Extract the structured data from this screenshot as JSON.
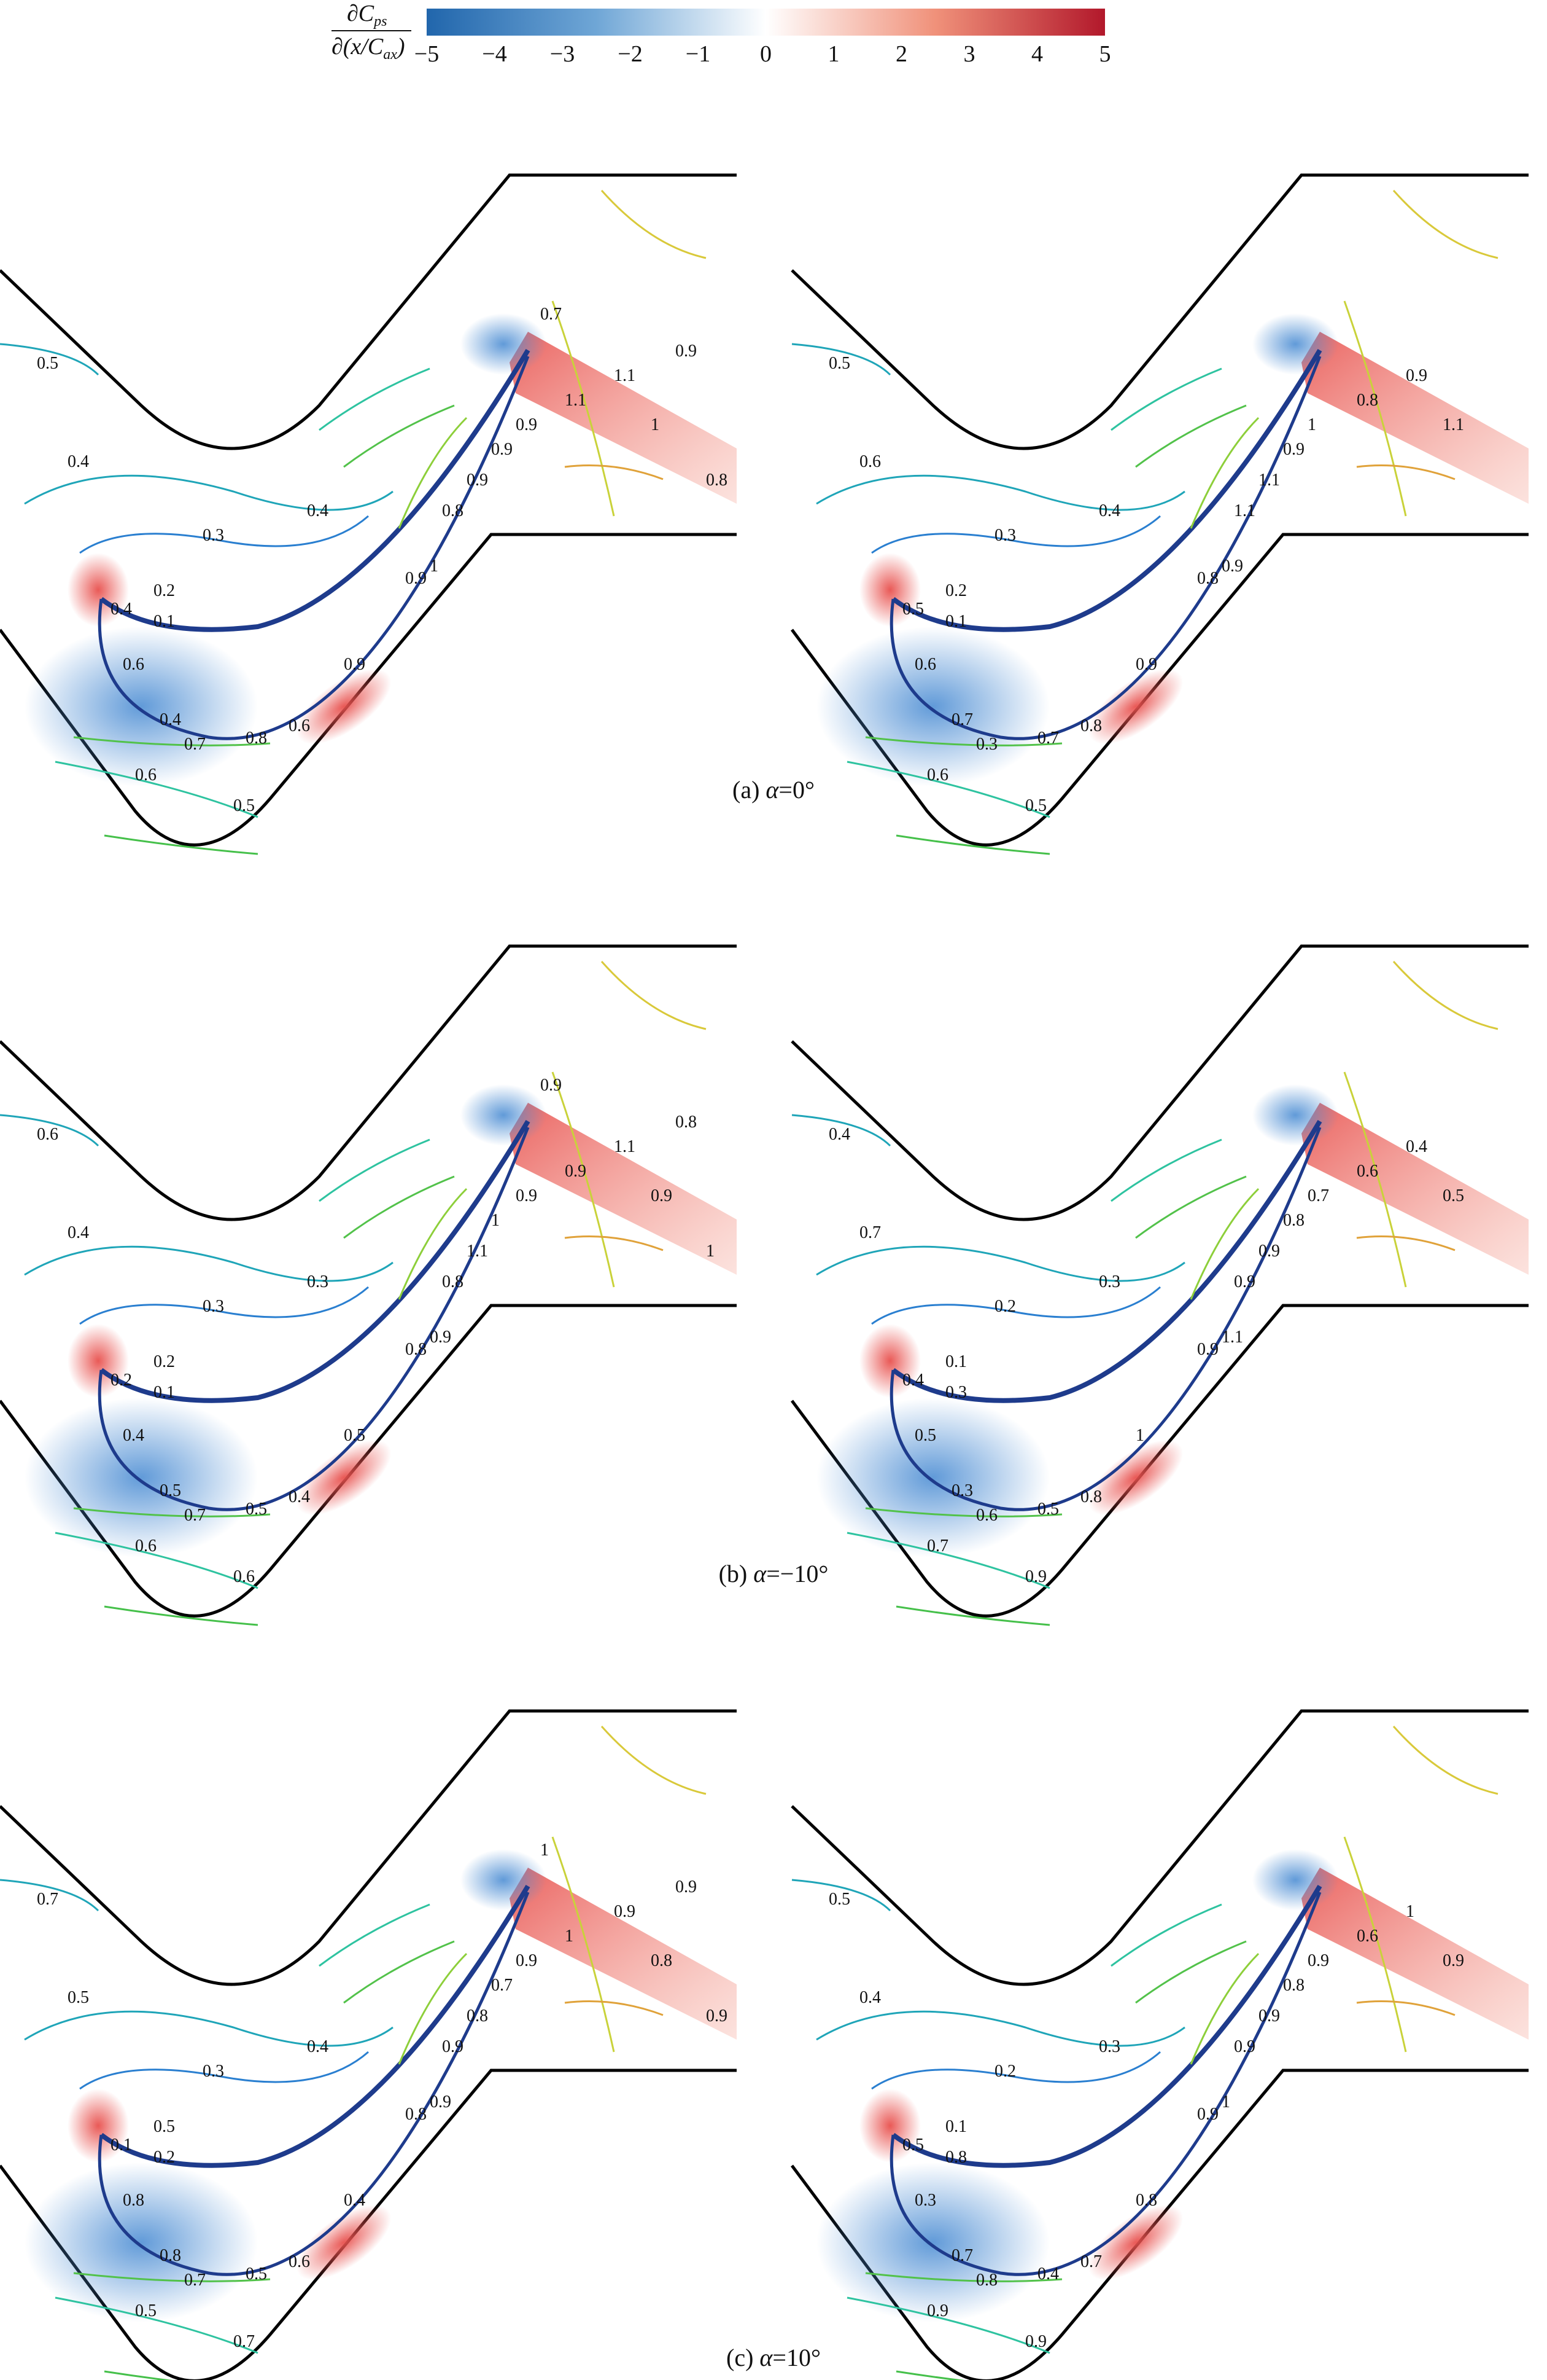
{
  "colorbar": {
    "label_numerator": "∂C",
    "label_numerator_sub": "ps",
    "label_denominator": "∂(x/C",
    "label_denominator_sub": "ax",
    "label_denominator_end": ")",
    "min": -5,
    "max": 5,
    "ticks": [
      "−5",
      "−4",
      "−3",
      "−2",
      "−1",
      "0",
      "1",
      "2",
      "3",
      "4",
      "5"
    ],
    "colors": {
      "neg": "#2166ac",
      "zero": "#ffffff",
      "pos": "#b2182b"
    }
  },
  "captions": {
    "a": {
      "prefix": "(a) ",
      "var": "α",
      "rest": "=0°"
    },
    "b": {
      "prefix": "(b) ",
      "var": "α",
      "rest": "=−10°"
    },
    "c": {
      "prefix": "(c) ",
      "var": "α",
      "rest": "=10°"
    }
  },
  "panels": [
    {
      "id": "a-left",
      "labels": [
        "0.5",
        "0.4",
        "0.4",
        "0.3",
        "0.2",
        "0.1",
        "0.4",
        "0.6",
        "0.4",
        "0.7",
        "0.6",
        "0.8",
        "0.6",
        "0.5",
        "0.9",
        "0.9",
        "1",
        "0.8",
        "0.9",
        "0.9",
        "0.9",
        "1.1",
        "1.1",
        "1",
        "0.9",
        "0.8",
        "0.7"
      ]
    },
    {
      "id": "a-right",
      "labels": [
        "0.5",
        "0.6",
        "0.4",
        "0.3",
        "0.2",
        "0.1",
        "0.5",
        "0.6",
        "0.7",
        "0.3",
        "0.6",
        "0.7",
        "0.8",
        "0.5",
        "0.9",
        "0.8",
        "0.9",
        "1.1",
        "1.1",
        "0.9",
        "1",
        "0.8",
        "0.9",
        "1.1"
      ]
    },
    {
      "id": "b-left",
      "labels": [
        "0.6",
        "0.4",
        "0.3",
        "0.3",
        "0.2",
        "0.1",
        "0.2",
        "0.4",
        "0.5",
        "0.7",
        "0.6",
        "0.5",
        "0.4",
        "0.6",
        "0.5",
        "0.8",
        "0.9",
        "0.8",
        "1.1",
        "1",
        "0.9",
        "0.9",
        "1.1",
        "0.9",
        "0.8",
        "1",
        "0.9"
      ]
    },
    {
      "id": "b-right",
      "labels": [
        "0.4",
        "0.7",
        "0.3",
        "0.2",
        "0.1",
        "0.3",
        "0.4",
        "0.5",
        "0.3",
        "0.6",
        "0.7",
        "0.5",
        "0.8",
        "0.9",
        "1",
        "0.9",
        "1.1",
        "0.9",
        "0.9",
        "0.8",
        "0.7",
        "0.6",
        "0.4",
        "0.5"
      ]
    },
    {
      "id": "c-left",
      "labels": [
        "0.7",
        "0.5",
        "0.4",
        "0.3",
        "0.5",
        "0.2",
        "0.1",
        "0.8",
        "0.8",
        "0.7",
        "0.5",
        "0.5",
        "0.6",
        "0.7",
        "0.4",
        "0.8",
        "0.9",
        "0.9",
        "0.8",
        "0.7",
        "0.9",
        "1",
        "0.9",
        "0.8",
        "0.9",
        "0.9",
        "1"
      ]
    },
    {
      "id": "c-right",
      "labels": [
        "0.5",
        "0.4",
        "0.3",
        "0.2",
        "0.1",
        "0.8",
        "0.5",
        "0.3",
        "0.7",
        "0.8",
        "0.9",
        "0.4",
        "0.7",
        "0.9",
        "0.8",
        "0.9",
        "1",
        "0.9",
        "0.9",
        "0.8",
        "0.9",
        "0.6",
        "1",
        "0.9"
      ]
    }
  ]
}
